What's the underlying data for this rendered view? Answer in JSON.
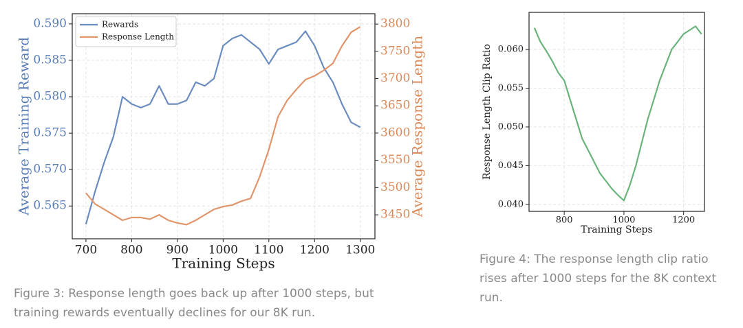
{
  "chart_data": [
    {
      "type": "line",
      "xlabel": "Training Steps",
      "ylabel": "Average Training Reward",
      "y2label": "Average Response Length",
      "caption": "Figure 3: Response length goes back up after 1000 steps, but training rewards eventually declines for our 8K run.",
      "x": [
        700,
        720,
        740,
        760,
        780,
        800,
        820,
        840,
        860,
        880,
        900,
        920,
        940,
        960,
        980,
        1000,
        1020,
        1040,
        1060,
        1080,
        1100,
        1120,
        1140,
        1160,
        1180,
        1200,
        1220,
        1240,
        1260,
        1280,
        1300
      ],
      "series": [
        {
          "name": "Rewards",
          "color": "#6b8cbf",
          "axis": "y",
          "values": [
            0.5625,
            0.567,
            0.571,
            0.5745,
            0.58,
            0.579,
            0.5785,
            0.579,
            0.5815,
            0.579,
            0.579,
            0.5795,
            0.582,
            0.5815,
            0.5825,
            0.587,
            0.588,
            0.5885,
            0.5875,
            0.5865,
            0.5845,
            0.5865,
            0.587,
            0.5875,
            0.589,
            0.587,
            0.584,
            0.582,
            0.579,
            0.5765,
            0.5758
          ]
        },
        {
          "name": "Response Length",
          "color": "#e0956b",
          "axis": "y2",
          "values": [
            3490,
            3470,
            3460,
            3450,
            3440,
            3445,
            3445,
            3442,
            3450,
            3440,
            3435,
            3432,
            3440,
            3450,
            3460,
            3465,
            3468,
            3475,
            3480,
            3520,
            3570,
            3630,
            3660,
            3680,
            3698,
            3705,
            3715,
            3728,
            3760,
            3785,
            3795
          ]
        }
      ],
      "xlim": [
        670,
        1332
      ],
      "xticks": [
        700,
        800,
        900,
        1000,
        1100,
        1200,
        1300
      ],
      "ylim": [
        0.5605,
        0.5914
      ],
      "yticks": [
        0.565,
        {
          "value": 0.57,
          "label": "0.570"
        },
        0.575,
        {
          "value": 0.58,
          "label": "0.580"
        },
        0.585,
        {
          "value": 0.59,
          "label": "0.590"
        }
      ],
      "y2lim": [
        3406,
        3819
      ],
      "y2ticks": [
        3450,
        3500,
        3550,
        3600,
        3650,
        3700,
        3750,
        3800
      ],
      "grid": true,
      "legend": "upper-left"
    },
    {
      "type": "line",
      "xlabel": "Training Steps",
      "ylabel": "Response Length Clip Ratio",
      "caption": "Figure 4: The response length clip ratio rises after 1000 steps for the 8K context run.",
      "x": [
        700,
        720,
        740,
        760,
        780,
        800,
        820,
        840,
        860,
        880,
        900,
        920,
        940,
        960,
        980,
        1000,
        1020,
        1040,
        1060,
        1080,
        1100,
        1120,
        1140,
        1160,
        1180,
        1200,
        1220,
        1240,
        1260
      ],
      "series": [
        {
          "color": "#6ab47c",
          "axis": "y",
          "values": [
            0.0628,
            0.061,
            0.0598,
            0.0585,
            0.057,
            0.056,
            0.0535,
            0.051,
            0.0485,
            0.047,
            0.0455,
            0.044,
            0.043,
            0.042,
            0.0412,
            0.0405,
            0.0425,
            0.045,
            0.048,
            0.051,
            0.0535,
            0.056,
            0.058,
            0.06,
            0.061,
            0.062,
            0.0625,
            0.063,
            0.062
          ]
        }
      ],
      "xlim": [
        682,
        1270
      ],
      "xticks": [
        800,
        1000,
        1200
      ],
      "ylim": [
        0.0391,
        0.0648
      ],
      "yticks": [
        {
          "value": 0.04,
          "label": "0.040"
        },
        0.045,
        {
          "value": 0.05,
          "label": "0.050"
        },
        0.055,
        {
          "value": 0.06,
          "label": "0.060"
        }
      ],
      "grid": true
    }
  ]
}
